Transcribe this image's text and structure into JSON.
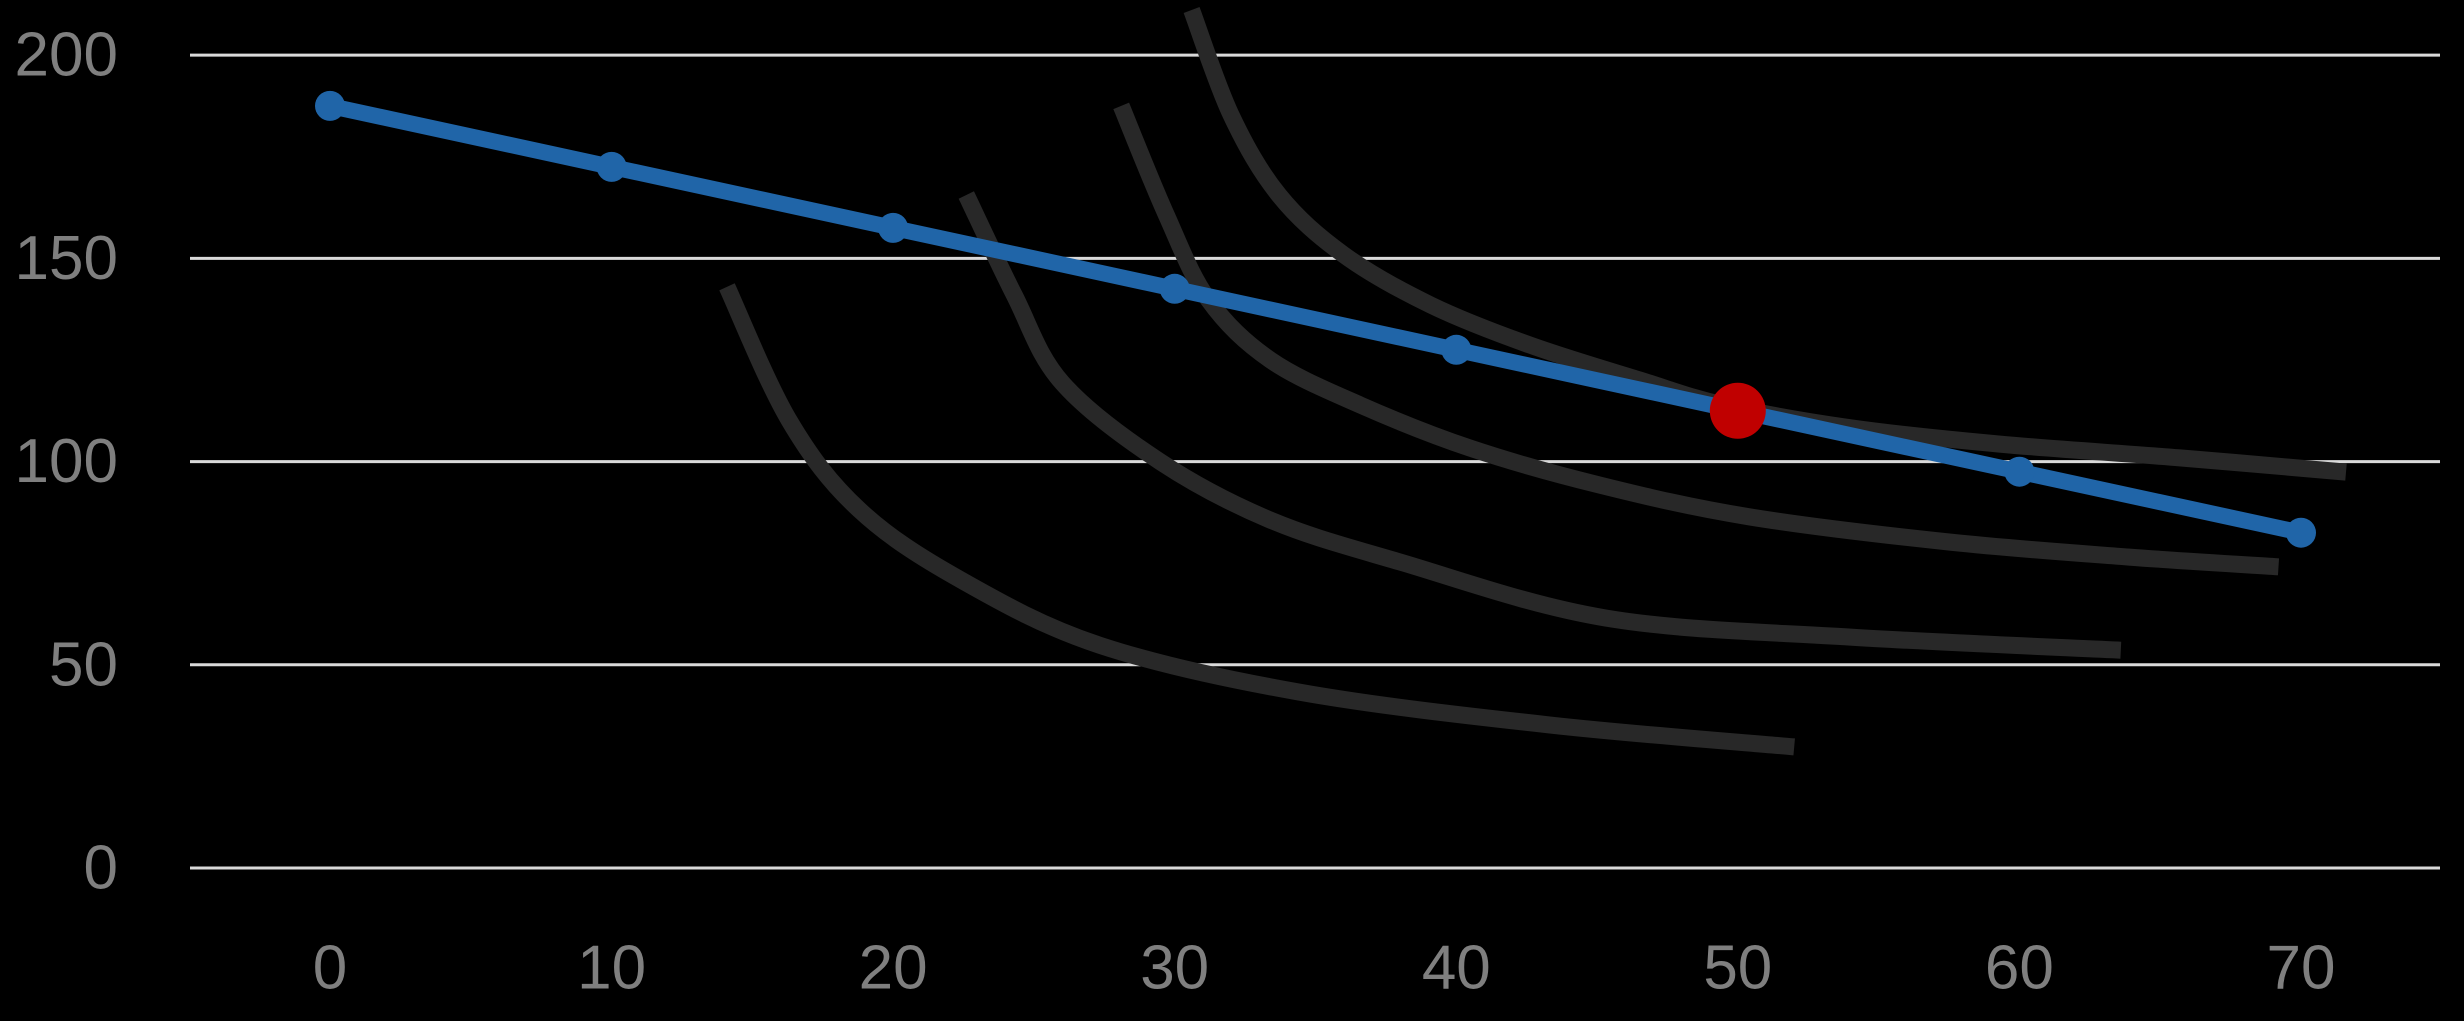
{
  "background_color": "#000000",
  "chart_data": {
    "type": "line",
    "title": "",
    "xlabel": "",
    "ylabel": "",
    "grid": "horizontal-only",
    "legend": "none",
    "colors": {
      "budget_line": "#2065A8",
      "optimal_point": "#C00000",
      "indifference_curve": "#282828",
      "gridline": "#D9D9D9",
      "tick_label": "#7F7F7F"
    },
    "x_axis": {
      "min": -5,
      "max": 75,
      "tick_values": [
        0,
        10,
        20,
        30,
        40,
        50,
        60,
        70
      ],
      "tick_labels": [
        "0",
        "10",
        "20",
        "30",
        "40",
        "50",
        "60",
        "70"
      ]
    },
    "y_axis": {
      "min": 0,
      "max": 213,
      "tick_values": [
        0,
        50,
        100,
        150,
        200
      ],
      "tick_labels": [
        "0",
        "50",
        "100",
        "150",
        "200"
      ]
    },
    "budget_line": {
      "name": "budget-line",
      "x": [
        0,
        10,
        20,
        30,
        40,
        50,
        60,
        70
      ],
      "y": [
        187.5,
        172.5,
        157.5,
        142.5,
        127.5,
        112.5,
        97.5,
        82.5
      ],
      "highlighted_index": 5
    },
    "optimal_point": {
      "x": 50,
      "y": 112.5
    },
    "indifference_curves": [
      {
        "name": "indifference-curve-1",
        "points": [
          [
            14.1,
            143.0
          ],
          [
            16.3,
            110.2
          ],
          [
            18.8,
            88.1
          ],
          [
            22.4,
            70.9
          ],
          [
            27.3,
            54.9
          ],
          [
            34.4,
            43.3
          ],
          [
            43.3,
            35.2
          ],
          [
            52.0,
            29.8
          ]
        ]
      },
      {
        "name": "indifference-curve-2",
        "points": [
          [
            22.6,
            165.6
          ],
          [
            24.3,
            141.0
          ],
          [
            26.0,
            119.4
          ],
          [
            29.5,
            99.9
          ],
          [
            33.4,
            85.6
          ],
          [
            38.0,
            75.3
          ],
          [
            45.3,
            61.5
          ],
          [
            54.0,
            56.8
          ],
          [
            63.6,
            53.6
          ]
        ]
      },
      {
        "name": "indifference-curve-3",
        "points": [
          [
            28.1,
            187.5
          ],
          [
            29.7,
            160.7
          ],
          [
            31.2,
            139.8
          ],
          [
            33.4,
            125.0
          ],
          [
            36.6,
            113.9
          ],
          [
            40.5,
            103.3
          ],
          [
            45.1,
            94.2
          ],
          [
            50.4,
            86.4
          ],
          [
            57.5,
            80.2
          ],
          [
            63.9,
            76.5
          ],
          [
            69.2,
            74.1
          ]
        ]
      },
      {
        "name": "indifference-curve-4",
        "points": [
          [
            30.6,
            211.1
          ],
          [
            32.0,
            185.3
          ],
          [
            33.7,
            165.6
          ],
          [
            36.0,
            150.9
          ],
          [
            39.1,
            138.5
          ],
          [
            42.6,
            128.7
          ],
          [
            46.5,
            120.1
          ],
          [
            49.5,
            113.9
          ],
          [
            54.0,
            108.3
          ],
          [
            59.3,
            104.3
          ],
          [
            65.7,
            100.9
          ],
          [
            71.6,
            97.4
          ]
        ]
      }
    ]
  }
}
